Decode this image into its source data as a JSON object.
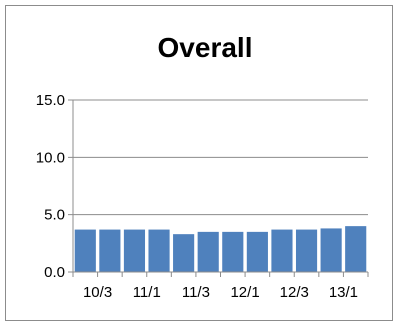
{
  "chart_data": {
    "type": "bar",
    "title": "Overall",
    "xlabel": "",
    "ylabel": "",
    "ylim": [
      0,
      15
    ],
    "ytick_values": [
      0,
      5,
      10,
      15
    ],
    "ytick_labels": [
      "0.0",
      "5.0",
      "10.0",
      "15.0"
    ],
    "categories": [
      "10/3",
      "",
      "11/1",
      "",
      "11/3",
      "",
      "12/1",
      "",
      "12/3",
      "",
      "13/1",
      ""
    ],
    "xtick_labels": [
      "10/3",
      "11/1",
      "11/3",
      "12/1",
      "12/3",
      "13/1"
    ],
    "values": [
      3.7,
      3.7,
      3.7,
      3.7,
      3.3,
      3.5,
      3.5,
      3.5,
      3.7,
      3.7,
      3.8,
      4.0
    ],
    "grid": true,
    "legend": "none",
    "bar_color": "#4f81bd",
    "grid_color": "#8c8c8c"
  }
}
